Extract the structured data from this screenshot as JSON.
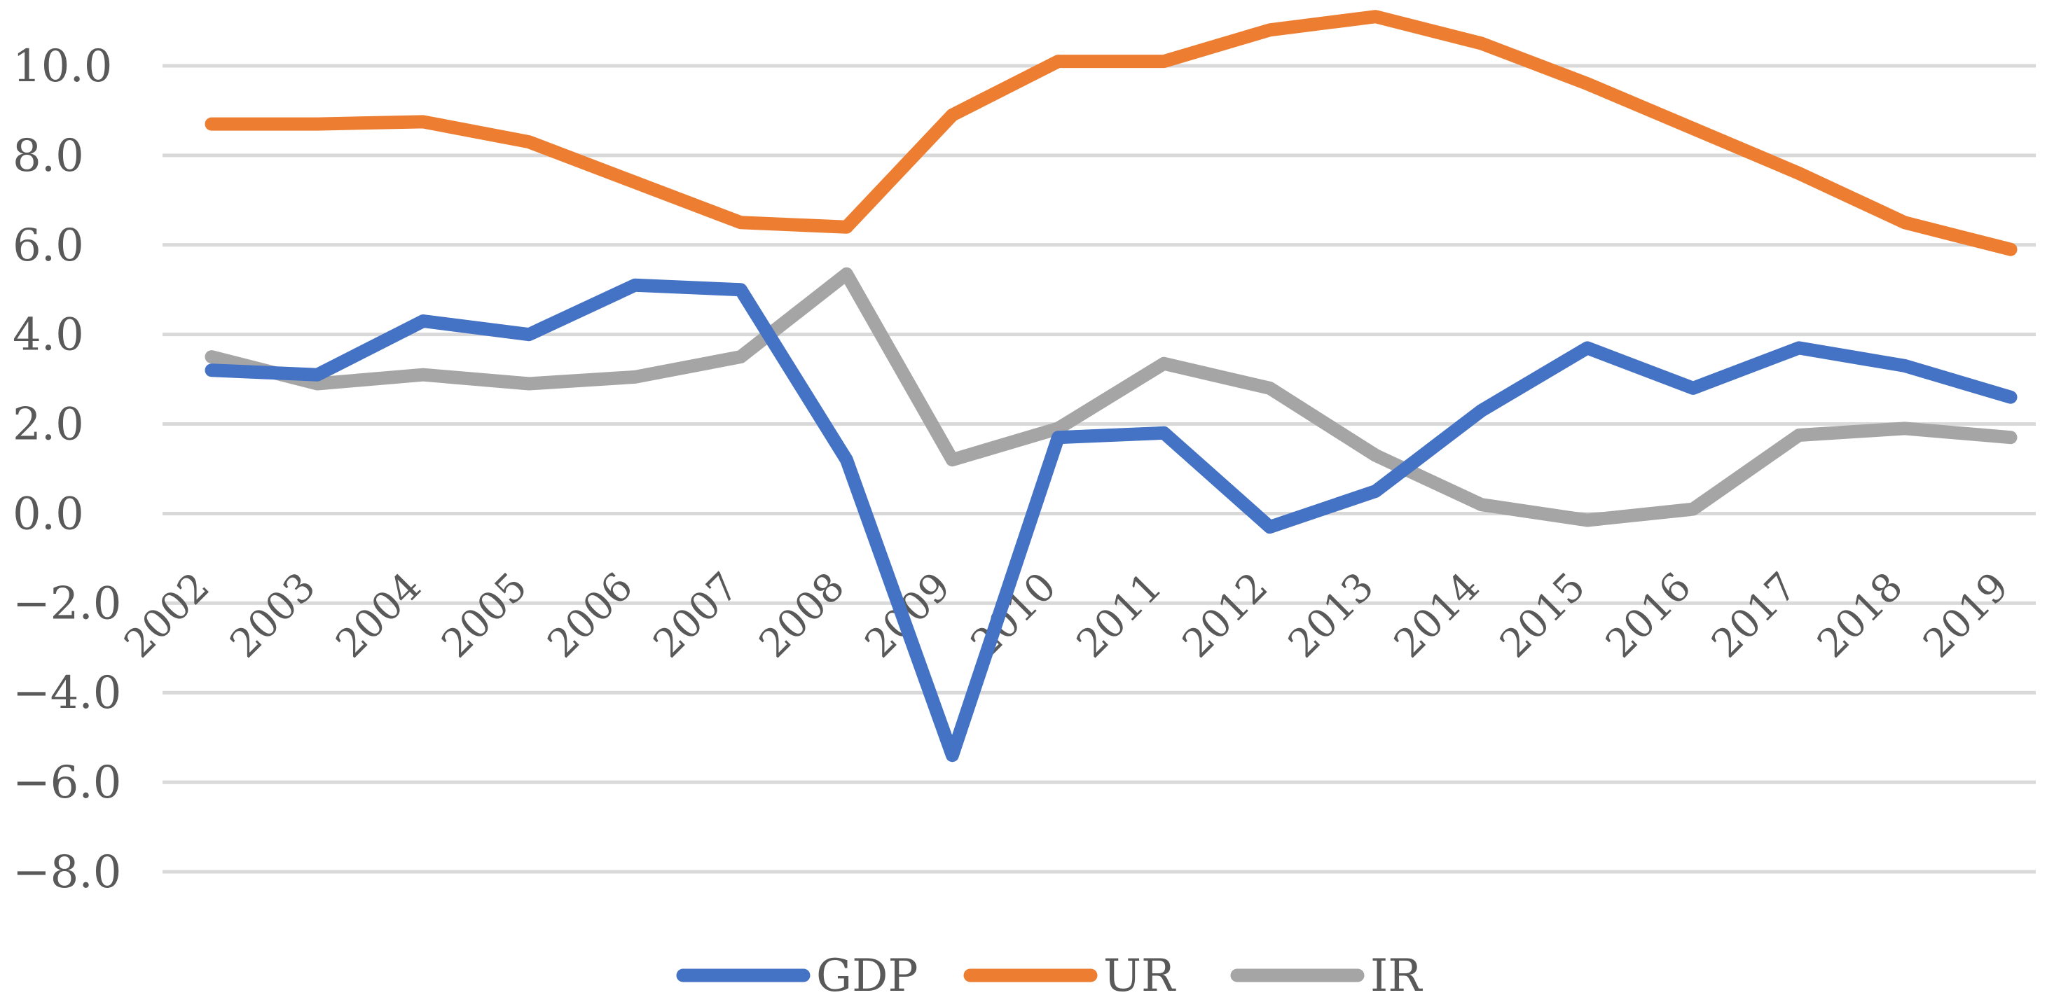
{
  "chart_data": {
    "type": "line",
    "title": "",
    "xlabel": "",
    "ylabel": "",
    "ylim": [
      -8,
      10
    ],
    "yticks": [
      10,
      8,
      6,
      4,
      2,
      0,
      -2,
      -4,
      -6,
      -8
    ],
    "ytick_labels": [
      "10.0",
      "8.0",
      "6.0",
      "4.0",
      "2.0",
      "0.0",
      "−2.0",
      "−4.0",
      "−6.0",
      "−8.0"
    ],
    "categories": [
      "2002",
      "2003",
      "2004",
      "2005",
      "2006",
      "2007",
      "2008",
      "2009",
      "2010",
      "2011",
      "2012",
      "2013",
      "2014",
      "2015",
      "2016",
      "2017",
      "2018",
      "2019"
    ],
    "legend_position": "bottom-center",
    "series": [
      {
        "name": "GDP",
        "color": "#4472C4",
        "values": [
          3.2,
          3.1,
          4.3,
          4.0,
          5.1,
          5.0,
          1.2,
          -5.4,
          1.7,
          1.8,
          -0.3,
          0.5,
          2.3,
          3.7,
          2.8,
          3.7,
          3.3,
          2.6
        ]
      },
      {
        "name": "UR",
        "color": "#ED7D31",
        "values": [
          8.7,
          8.7,
          8.75,
          8.3,
          7.4,
          6.5,
          6.4,
          8.9,
          10.1,
          10.1,
          10.8,
          11.1,
          10.5,
          9.6,
          8.6,
          7.6,
          6.5,
          5.9
        ]
      },
      {
        "name": "IR",
        "color": "#A5A5A5",
        "values": [
          3.5,
          2.9,
          3.1,
          2.9,
          3.05,
          3.5,
          5.35,
          1.2,
          1.9,
          3.35,
          2.8,
          1.3,
          0.2,
          -0.15,
          0.1,
          1.75,
          1.9,
          1.7
        ]
      }
    ]
  }
}
